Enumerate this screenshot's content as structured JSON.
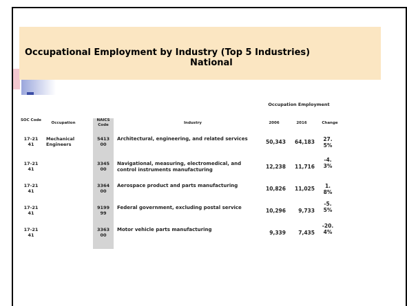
{
  "title": "Occupational Employment by Industry (Top 5 Industries)",
  "subtitle": "National",
  "table": {
    "group_header": "Occupation Employment",
    "headers": [
      "SOC Code",
      "Occupation",
      "NAICS Code",
      "Industry",
      "2006",
      "2016",
      "Change"
    ],
    "rows": [
      [
        "17-2141",
        "Mechanical Engineers",
        "541300",
        "Architectural, engineering, and related services",
        "50,343",
        "64,183",
        "27.5%"
      ],
      [
        "17-2141",
        "",
        "334500",
        "Navigational, measuring, electromedical, and control instruments manufacturing",
        "12,238",
        "11,716",
        "-4.3%"
      ],
      [
        "17-2141",
        "",
        "336400",
        "Aerospace product and parts manufacturing",
        "10,826",
        "11,025",
        "1.8%"
      ],
      [
        "17-2141",
        "",
        "919999",
        "Federal government, excluding postal service",
        "10,296",
        "9,733",
        "-5.5%"
      ],
      [
        "17-2141",
        "",
        "336300",
        "Motor vehicle parts manufacturing",
        "9,339",
        "7,435",
        "-20.4%"
      ]
    ]
  }
}
